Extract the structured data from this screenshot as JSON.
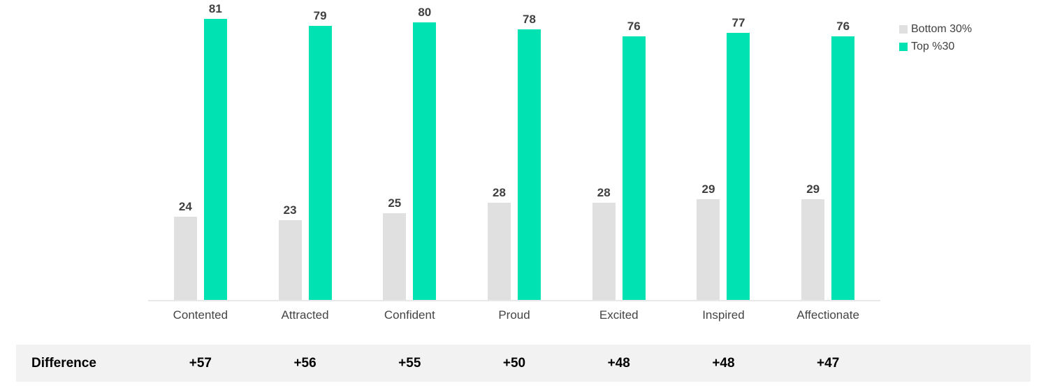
{
  "chart_data": {
    "type": "bar",
    "title": "",
    "categories": [
      "Contented",
      "Attracted",
      "Confident",
      "Proud",
      "Excited",
      "Inspired",
      "Affectionate"
    ],
    "series": [
      {
        "name": "Bottom 30%",
        "color": "#e0e0e0",
        "values": [
          24,
          23,
          25,
          28,
          28,
          29,
          29
        ]
      },
      {
        "name": "Top %30",
        "color": "#00e2b2",
        "values": [
          81,
          79,
          80,
          78,
          76,
          77,
          76
        ]
      }
    ],
    "value_labels_shown": true,
    "xlabel": "",
    "ylabel": "",
    "ylim": [
      0,
      87
    ],
    "grid": false,
    "axis_line_color": "#e8e8e8",
    "value_label_color": "#404040",
    "legend_position": "top-right"
  },
  "legend": {
    "items": [
      {
        "label": "Bottom 30%",
        "color": "#e0e0e0"
      },
      {
        "label": "Top %30",
        "color": "#00e2b2"
      }
    ]
  },
  "difference_row": {
    "label": "Difference",
    "values": [
      "+57",
      "+56",
      "+55",
      "+50",
      "+48",
      "+48",
      "+47"
    ],
    "background_color": "#f2f2f2",
    "text_color": "#000000"
  }
}
